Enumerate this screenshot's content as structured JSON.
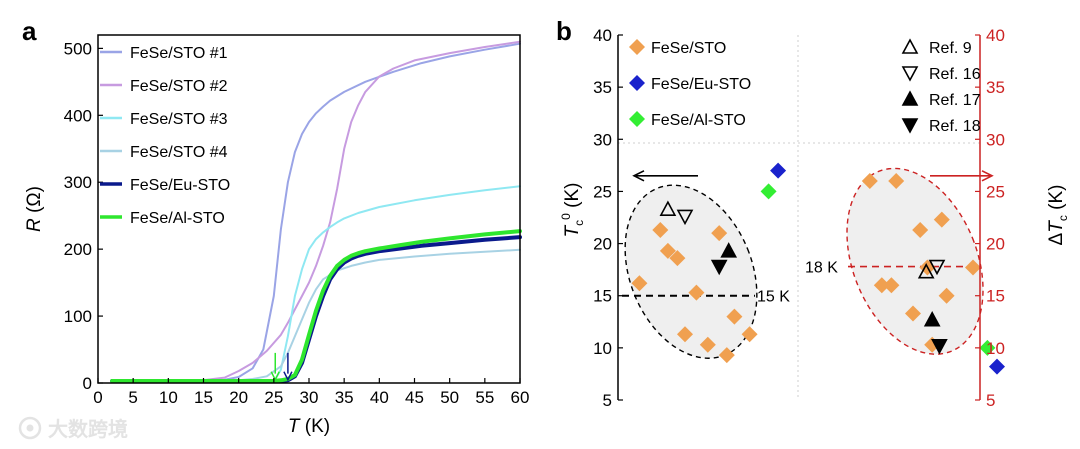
{
  "watermark": "大数跨境",
  "chart_data": [
    {
      "panel": "a",
      "type": "line",
      "title": "",
      "xlabel_italic": "T",
      "xlabel_unit": " (K)",
      "ylabel_italic": "R",
      "ylabel_unit": " (Ω)",
      "xlim": [
        0,
        60
      ],
      "ylim": [
        0,
        520
      ],
      "xticks": [
        0,
        5,
        10,
        15,
        20,
        25,
        30,
        35,
        40,
        45,
        50,
        55,
        60
      ],
      "yticks": [
        0,
        100,
        200,
        300,
        400,
        500
      ],
      "grid": false,
      "legend_position": "top-left",
      "series": [
        {
          "name": "FeSe/STO #1",
          "color": "#9aa4e6",
          "width": 2,
          "x": [
            2,
            12,
            16,
            18,
            20,
            22,
            23.5,
            25,
            26,
            27,
            28,
            29,
            30,
            31,
            32,
            33,
            35,
            38,
            42,
            46,
            50,
            55,
            60
          ],
          "y": [
            3,
            3,
            3,
            5,
            9,
            22,
            50,
            130,
            230,
            300,
            345,
            372,
            390,
            403,
            413,
            422,
            435,
            450,
            465,
            478,
            488,
            498,
            507
          ]
        },
        {
          "name": "FeSe/STO #2",
          "color": "#c79be0",
          "width": 2,
          "x": [
            2,
            14,
            18,
            20,
            22,
            24,
            26,
            27,
            28,
            29,
            30,
            31,
            32,
            33,
            34,
            35,
            36,
            37,
            38,
            40,
            42,
            45,
            50,
            55,
            60
          ],
          "y": [
            3,
            3,
            8,
            18,
            30,
            48,
            72,
            90,
            110,
            130,
            150,
            175,
            205,
            240,
            290,
            350,
            390,
            415,
            435,
            458,
            470,
            482,
            493,
            502,
            510
          ]
        },
        {
          "name": "FeSe/STO #3",
          "color": "#8fe8f2",
          "width": 2,
          "x": [
            2,
            20,
            25,
            26,
            27,
            28,
            29,
            30,
            31,
            32,
            33,
            34,
            35,
            37,
            40,
            45,
            50,
            55,
            60
          ],
          "y": [
            2,
            2,
            2,
            20,
            70,
            130,
            170,
            200,
            215,
            225,
            233,
            240,
            246,
            254,
            263,
            273,
            281,
            288,
            294
          ]
        },
        {
          "name": "FeSe/STO #4",
          "color": "#a8d2e4",
          "width": 2,
          "x": [
            2,
            18,
            20,
            22,
            24,
            26,
            27,
            28,
            29,
            30,
            31,
            32,
            34,
            36,
            38,
            40,
            45,
            50,
            55,
            60
          ],
          "y": [
            3,
            3,
            4,
            6,
            10,
            25,
            45,
            70,
            95,
            120,
            140,
            155,
            168,
            175,
            180,
            184,
            189,
            193,
            196,
            199
          ]
        },
        {
          "name": "FeSe/Eu-STO",
          "color": "#0a1a8c",
          "width": 4,
          "x": [
            2,
            25,
            26,
            27,
            28,
            29,
            30,
            31,
            32,
            33,
            34,
            35,
            36,
            37,
            38,
            40,
            43,
            46,
            50,
            55,
            60
          ],
          "y": [
            3,
            3,
            3,
            4,
            10,
            30,
            65,
            100,
            130,
            155,
            170,
            180,
            186,
            190,
            193,
            197,
            201,
            205,
            209,
            214,
            218
          ]
        },
        {
          "name": "FeSe/Al-STO",
          "color": "#2ee62e",
          "width": 4,
          "x": [
            2,
            25,
            26,
            27,
            28,
            29,
            30,
            31,
            32,
            33,
            34,
            35,
            36,
            37,
            38,
            40,
            43,
            46,
            50,
            55,
            60
          ],
          "y": [
            3,
            3,
            4,
            6,
            12,
            35,
            72,
            108,
            138,
            160,
            175,
            184,
            190,
            194,
            197,
            201,
            206,
            211,
            216,
            222,
            227
          ]
        }
      ],
      "annotations": [
        {
          "type": "arrow",
          "color": "#2ee62e",
          "x": 25.2,
          "y_from": 45,
          "y_to": 5
        },
        {
          "type": "arrow",
          "color": "#0a1a8c",
          "x": 27.0,
          "y_from": 45,
          "y_to": 5
        }
      ]
    },
    {
      "panel": "b",
      "type": "scatter",
      "title": "",
      "ylabel_left": "T_c^0 (K)",
      "ylabel_right": "ΔT_c (K)",
      "ylim": [
        5,
        40
      ],
      "yticks": [
        5,
        10,
        15,
        20,
        25,
        30,
        35,
        40
      ],
      "right_axis_color": "#cc2222",
      "grid": false,
      "legend_position": "top",
      "legend_left": [
        {
          "label": "FeSe/STO",
          "marker": "diamond",
          "color": "#f0a050"
        },
        {
          "label": "FeSe/Eu-STO",
          "marker": "diamond",
          "color": "#1a22cc"
        },
        {
          "label": "FeSe/Al-STO",
          "marker": "diamond",
          "color": "#33ee33"
        }
      ],
      "legend_right": [
        {
          "label": "Ref. 9",
          "marker": "triangle-up-open",
          "color": "#000000"
        },
        {
          "label": "Ref. 16",
          "marker": "triangle-down-open",
          "color": "#000000"
        },
        {
          "label": "Ref. 17",
          "marker": "triangle-up-filled",
          "color": "#000000"
        },
        {
          "label": "Ref. 18",
          "marker": "triangle-down-filled",
          "color": "#000000"
        }
      ],
      "left_group": {
        "axis": "T_c^0",
        "reference_label": "15 K",
        "reference_value": 15,
        "arrow_direction": "left",
        "arrow_color": "#000000",
        "ellipse_color": "#000000",
        "points": [
          {
            "series": "FeSe/STO",
            "i": 0.6,
            "y": 16.2
          },
          {
            "series": "FeSe/STO",
            "i": 1.7,
            "y": 21.3
          },
          {
            "series": "FeSe/STO",
            "i": 2.1,
            "y": 19.3
          },
          {
            "series": "FeSe/STO",
            "i": 2.6,
            "y": 18.6
          },
          {
            "series": "FeSe/STO",
            "i": 3.0,
            "y": 11.3
          },
          {
            "series": "FeSe/STO",
            "i": 3.6,
            "y": 15.3
          },
          {
            "series": "FeSe/STO",
            "i": 4.2,
            "y": 10.3
          },
          {
            "series": "FeSe/STO",
            "i": 4.8,
            "y": 21.0
          },
          {
            "series": "FeSe/STO",
            "i": 5.2,
            "y": 9.3
          },
          {
            "series": "FeSe/STO",
            "i": 5.6,
            "y": 13.0
          },
          {
            "series": "FeSe/STO",
            "i": 6.4,
            "y": 11.3
          },
          {
            "series": "Ref. 9",
            "i": 2.1,
            "y": 23.3
          },
          {
            "series": "Ref. 16",
            "i": 3.0,
            "y": 22.6
          },
          {
            "series": "Ref. 17",
            "i": 5.3,
            "y": 19.3
          },
          {
            "series": "Ref. 18",
            "i": 4.8,
            "y": 17.8
          },
          {
            "series": "FeSe/Eu-STO",
            "i": 7.9,
            "y": 27.0
          },
          {
            "series": "FeSe/Al-STO",
            "i": 7.4,
            "y": 25.0
          }
        ]
      },
      "right_group": {
        "axis": "ΔT_c",
        "reference_label": "18 K",
        "reference_value": 17.8,
        "arrow_direction": "right",
        "arrow_color": "#cc2222",
        "ellipse_color": "#cc2222",
        "points": [
          {
            "series": "FeSe/STO",
            "i": 0.7,
            "y": 26.0
          },
          {
            "series": "FeSe/STO",
            "i": 1.8,
            "y": 26.0
          },
          {
            "series": "FeSe/STO",
            "i": 1.2,
            "y": 16.0
          },
          {
            "series": "FeSe/STO",
            "i": 1.6,
            "y": 16.0
          },
          {
            "series": "FeSe/STO",
            "i": 2.5,
            "y": 13.3
          },
          {
            "series": "FeSe/STO",
            "i": 2.8,
            "y": 21.3
          },
          {
            "series": "FeSe/STO",
            "i": 3.7,
            "y": 22.3
          },
          {
            "series": "FeSe/STO",
            "i": 3.9,
            "y": 15.0
          },
          {
            "series": "FeSe/STO",
            "i": 3.3,
            "y": 10.3
          },
          {
            "series": "FeSe/STO",
            "i": 3.1,
            "y": 17.7
          },
          {
            "series": "FeSe/STO",
            "i": 5.0,
            "y": 17.7
          },
          {
            "series": "Ref. 9",
            "i": 3.05,
            "y": 17.3
          },
          {
            "series": "Ref. 16",
            "i": 3.5,
            "y": 17.8
          },
          {
            "series": "Ref. 17",
            "i": 3.3,
            "y": 12.7
          },
          {
            "series": "Ref. 18",
            "i": 3.6,
            "y": 10.2
          },
          {
            "series": "FeSe/Al-STO",
            "i": 5.6,
            "y": 10.0
          },
          {
            "series": "FeSe/Eu-STO",
            "i": 6.0,
            "y": 8.2
          }
        ]
      }
    }
  ]
}
